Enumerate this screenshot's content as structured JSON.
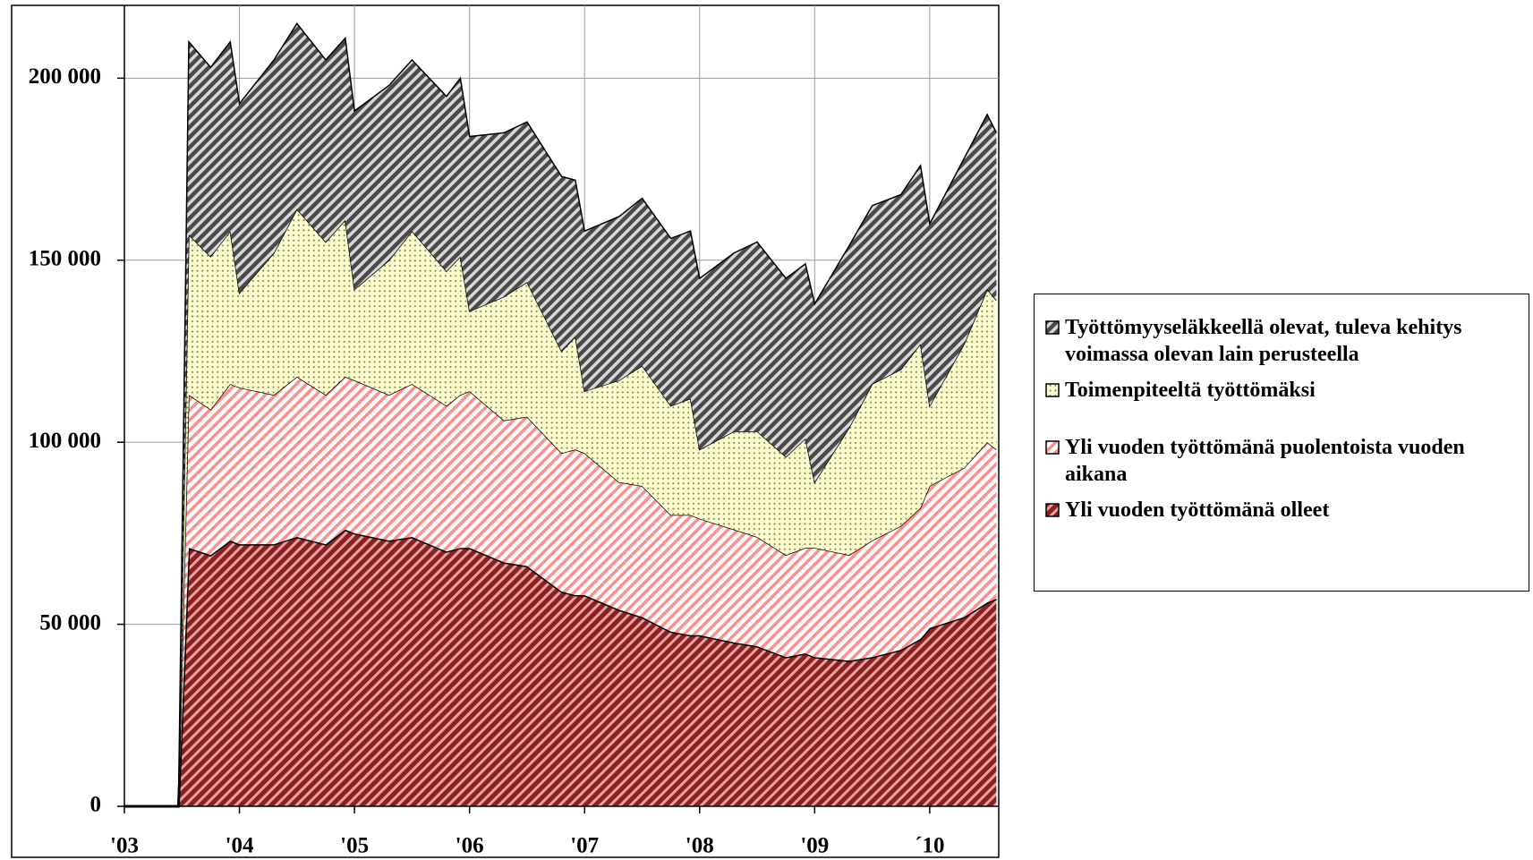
{
  "chart_data": {
    "type": "stacked_area",
    "x": [
      2003.0,
      2003.47,
      2003.56,
      2003.75,
      2003.92,
      2004.0,
      2004.3,
      2004.5,
      2004.75,
      2004.92,
      2005.0,
      2005.3,
      2005.5,
      2005.8,
      2005.92,
      2006.0,
      2006.3,
      2006.5,
      2006.8,
      2006.92,
      2007.0,
      2007.3,
      2007.5,
      2007.75,
      2007.92,
      2008.0,
      2008.3,
      2008.5,
      2008.75,
      2008.92,
      2009.0,
      2009.3,
      2009.5,
      2009.75,
      2009.92,
      2010.0,
      2010.3,
      2010.5,
      2010.58
    ],
    "series": [
      {
        "name": "Yli vuoden työttömänä olleet",
        "color": "#8b2020",
        "values": [
          0,
          0,
          71000,
          69000,
          73000,
          72000,
          72000,
          74000,
          72000,
          76000,
          75000,
          73000,
          74000,
          70000,
          71000,
          71000,
          67000,
          66000,
          59000,
          58000,
          58000,
          54000,
          52000,
          48000,
          47000,
          47000,
          45000,
          44000,
          41000,
          42000,
          41000,
          40000,
          41000,
          43000,
          46000,
          49000,
          52000,
          56000,
          57000
        ]
      },
      {
        "name": "Yli vuoden työttömänä puolentoista vuoden aikana",
        "color": "#ff8f8f",
        "values": [
          0,
          0,
          42000,
          40000,
          43000,
          43000,
          41000,
          44000,
          41000,
          42000,
          42000,
          40000,
          42000,
          40000,
          42000,
          43000,
          39000,
          41000,
          38000,
          40000,
          39000,
          35000,
          36000,
          32000,
          33000,
          32000,
          31000,
          30000,
          28000,
          29000,
          30000,
          29000,
          32000,
          34000,
          36000,
          39000,
          41000,
          44000,
          41000
        ]
      },
      {
        "name": "Toimenpiteeltä työttömäksi",
        "color": "#8c8c5a",
        "values": [
          0,
          0,
          44000,
          42000,
          42000,
          26000,
          39000,
          46000,
          42000,
          43000,
          25000,
          37000,
          42000,
          37000,
          38000,
          22000,
          34000,
          37000,
          28000,
          31000,
          17000,
          28000,
          33000,
          30000,
          32000,
          19000,
          27000,
          29000,
          27000,
          30000,
          18000,
          35000,
          43000,
          43000,
          45000,
          22000,
          34000,
          42000,
          41000
        ]
      },
      {
        "name": "Työttömyyseläkkeellä olevat, tuleva kehitys voimassa olevan lain perusteella",
        "color": "#4a4a4a",
        "values": [
          0,
          0,
          53000,
          52000,
          52000,
          52000,
          53000,
          51000,
          50000,
          50000,
          49000,
          48000,
          47000,
          48000,
          49000,
          48000,
          45000,
          44000,
          48000,
          43000,
          44000,
          45000,
          46000,
          46000,
          46000,
          47000,
          49000,
          52000,
          49000,
          48000,
          49000,
          50000,
          49000,
          48000,
          49000,
          50000,
          51000,
          48000,
          46000
        ]
      }
    ],
    "xlim": [
      2003,
      2010.6
    ],
    "xticks": [
      {
        "value": 2003,
        "label": "'03"
      },
      {
        "value": 2004,
        "label": "'04"
      },
      {
        "value": 2005,
        "label": "'05"
      },
      {
        "value": 2006,
        "label": "'06"
      },
      {
        "value": 2007,
        "label": "'07"
      },
      {
        "value": 2008,
        "label": "'08"
      },
      {
        "value": 2009,
        "label": "'09"
      },
      {
        "value": 2010,
        "label": "´10"
      }
    ],
    "ylim": [
      0,
      220000
    ],
    "yticks": [
      0,
      {
        "value": 50000,
        "label": "50 000"
      },
      {
        "value": 100000,
        "label": "100 000"
      },
      {
        "value": 150000,
        "label": "150 000"
      },
      {
        "value": 200000,
        "label": "200 000"
      }
    ],
    "grid": true,
    "legend": "right"
  }
}
